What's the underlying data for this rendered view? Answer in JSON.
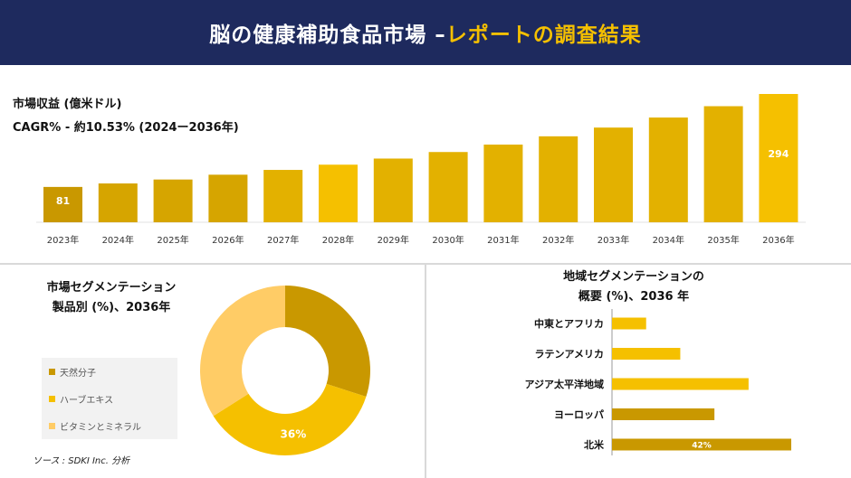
{
  "header": {
    "title_main": "脳の健康補助食品市場 –",
    "title_accent": "レポートの調査結果"
  },
  "revenue": {
    "label": "市場収益 (億米ドル)",
    "cagr": "CAGR% - 約10.53% (2024ー2036年)"
  },
  "segment_product": {
    "title_line1": "市場セグメンテーション",
    "title_line2": "製品別 (%)、2036年"
  },
  "segment_region": {
    "title_line1": "地域セグメンテーションの",
    "title_line2": "概要 (%)、2036 年"
  },
  "source": "ソース : SDKI Inc. 分析",
  "colors": {
    "header_bg": "#1e2a5e",
    "accent": "#f5c000",
    "dark_gold": "#c99800",
    "light_gold": "#ffcc66"
  },
  "chart_data": [
    {
      "type": "bar",
      "categories": [
        "2023年",
        "2024年",
        "2025年",
        "2026年",
        "2027年",
        "2028年",
        "2029年",
        "2030年",
        "2031年",
        "2032年",
        "2033年",
        "2034年",
        "2035年",
        "2036年"
      ],
      "values": [
        81,
        89,
        98,
        109,
        120,
        132,
        146,
        161,
        178,
        197,
        217,
        240,
        266,
        294
      ],
      "data_labels": {
        "0": "81",
        "13": "294"
      },
      "colors": [
        "#c99800",
        "#d6a500",
        "#d6a500",
        "#d6a500",
        "#e3b100",
        "#f5c000",
        "#e3b100",
        "#e3b100",
        "#e3b100",
        "#e3b100",
        "#e3b100",
        "#e3b100",
        "#e3b100",
        "#f5c000"
      ]
    },
    {
      "type": "pie",
      "donut": true,
      "categories": [
        "天然分子",
        "ハーブエキス",
        "ビタミンとミネラル"
      ],
      "values": [
        30,
        36,
        34
      ],
      "colors": [
        "#c99800",
        "#f5c000",
        "#ffcc66"
      ],
      "data_labels": {
        "1": "36%"
      }
    },
    {
      "type": "bar",
      "orientation": "horizontal",
      "categories": [
        "中東とアフリカ",
        "ラテンアメリカ",
        "アジア太平洋地域",
        "ヨーロッパ",
        "北米"
      ],
      "values": [
        8,
        16,
        32,
        24,
        42
      ],
      "colors": [
        "#f5c000",
        "#f5c000",
        "#f5c000",
        "#c99800",
        "#c99800"
      ],
      "data_labels": {
        "4": "42%"
      }
    }
  ]
}
